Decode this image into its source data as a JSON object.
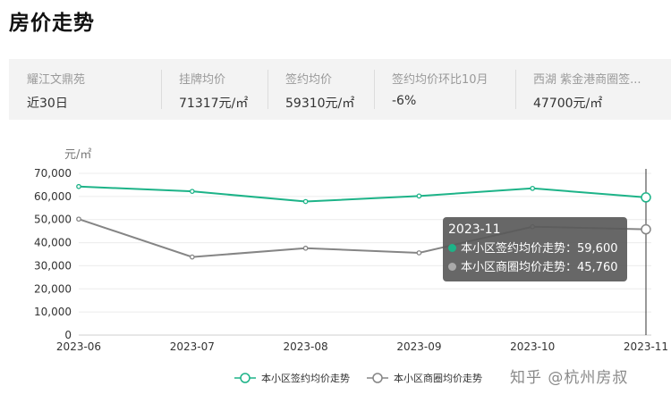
{
  "page": {
    "title": "房价走势"
  },
  "stats": [
    {
      "label": "耀江文鼎苑",
      "value": "近30日"
    },
    {
      "label": "挂牌均价",
      "value": "71317元/㎡"
    },
    {
      "label": "签约均价",
      "value": "59310元/㎡"
    },
    {
      "label": "签约均价环比10月",
      "value": "-6%"
    },
    {
      "label": "西湖 紫金港商圈签...",
      "value": "47700元/㎡"
    }
  ],
  "chart_data": {
    "type": "line",
    "unit_label": "元/㎡",
    "categories": [
      "2023-06",
      "2023-07",
      "2023-08",
      "2023-09",
      "2023-10",
      "2023-11"
    ],
    "ylim": [
      0,
      70000
    ],
    "yticks": [
      0,
      10000,
      20000,
      30000,
      40000,
      50000,
      60000,
      70000
    ],
    "ytick_labels": [
      "0",
      "10,000",
      "20,000",
      "30,000",
      "40,000",
      "50,000",
      "60,000",
      "70,000"
    ],
    "grid": true,
    "legend_position": "bottom",
    "series": [
      {
        "name": "本小区签约均价走势",
        "color": "#1db388",
        "values": [
          64300,
          62200,
          57800,
          60200,
          63500,
          59600
        ]
      },
      {
        "name": "本小区商圈均价走势",
        "color": "#858585",
        "values": [
          50200,
          33800,
          37600,
          35600,
          46900,
          45760
        ]
      }
    ]
  },
  "tooltip": {
    "title": "2023-11",
    "rows": [
      {
        "text": "本小区签约均价走势：59,600",
        "color": "#1db388"
      },
      {
        "text": "本小区商圈均价走势：45,760",
        "color": "#aaaaaa"
      }
    ]
  },
  "watermark": "知乎 @杭州房叔"
}
